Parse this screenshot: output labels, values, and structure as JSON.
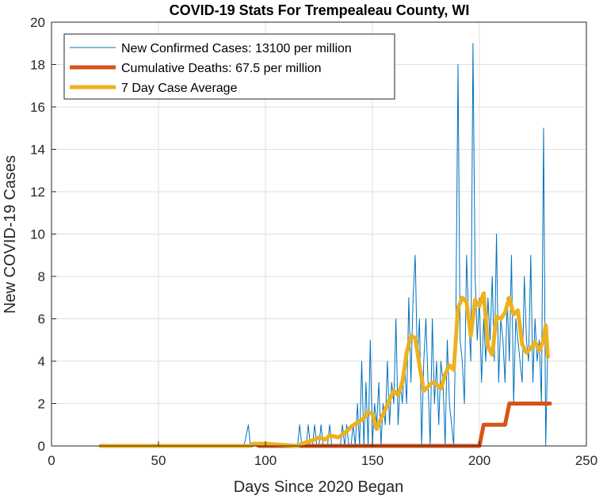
{
  "chart_data": {
    "type": "line",
    "title": "COVID-19 Stats For Trempealeau County, WI",
    "xlabel": "Days Since 2020 Began",
    "ylabel": "New COVID-19 Cases",
    "xlim": [
      0,
      250
    ],
    "ylim": [
      0,
      20
    ],
    "xticks": [
      "0",
      "50",
      "100",
      "150",
      "200",
      "250"
    ],
    "yticks": [
      "0",
      "2",
      "4",
      "6",
      "8",
      "10",
      "12",
      "14",
      "16",
      "18",
      "20"
    ],
    "grid": true,
    "legend_position": "top-left",
    "series": [
      {
        "name": "New Confirmed Cases: 13100 per million",
        "color": "#0072BD",
        "style": "thin",
        "x": [
          23,
          90,
          92,
          93,
          94,
          95,
          96,
          97,
          98,
          100,
          110,
          115,
          116,
          117,
          118,
          119,
          120,
          121,
          122,
          123,
          124,
          125,
          126,
          127,
          128,
          129,
          130,
          131,
          132,
          133,
          134,
          135,
          136,
          137,
          138,
          139,
          140,
          141,
          142,
          143,
          144,
          145,
          146,
          147,
          148,
          149,
          150,
          151,
          152,
          153,
          154,
          155,
          156,
          157,
          158,
          159,
          160,
          161,
          162,
          163,
          164,
          165,
          166,
          167,
          168,
          169,
          170,
          171,
          172,
          173,
          174,
          175,
          176,
          177,
          178,
          179,
          180,
          181,
          182,
          183,
          184,
          185,
          186,
          187,
          188,
          189,
          190,
          191,
          192,
          193,
          194,
          195,
          196,
          197,
          198,
          199,
          200,
          201,
          202,
          203,
          204,
          205,
          206,
          207,
          208,
          209,
          210,
          211,
          212,
          213,
          214,
          215,
          216,
          217,
          218,
          219,
          220,
          221,
          222,
          223,
          224,
          225,
          226,
          227,
          228,
          229,
          230,
          231,
          232
        ],
        "y": [
          0,
          0,
          1,
          0,
          0,
          0,
          0,
          0,
          0,
          0,
          0,
          0,
          1,
          0,
          0,
          0,
          1,
          0,
          0,
          1,
          0,
          0,
          1,
          0,
          0,
          0,
          1,
          0,
          0,
          0,
          0,
          0,
          1,
          0,
          1,
          0,
          0,
          1,
          0,
          2,
          0,
          4,
          0,
          3,
          0,
          5,
          0,
          2,
          1,
          3,
          0,
          2,
          1,
          4,
          1,
          3,
          2,
          6,
          1,
          3,
          2,
          4,
          2,
          7,
          3,
          7,
          9,
          4,
          6,
          0,
          4,
          6,
          3,
          0,
          6,
          2,
          4,
          1,
          4,
          3,
          0,
          5,
          2,
          1,
          0,
          6,
          18,
          5,
          4,
          2,
          9,
          6,
          4,
          19,
          8,
          5,
          7,
          3,
          6,
          4,
          7,
          5,
          8,
          4,
          10,
          3,
          6,
          5,
          3,
          7,
          4,
          9,
          2,
          6,
          5,
          4,
          3,
          8,
          5,
          4,
          9,
          3,
          6,
          4,
          5,
          2,
          15,
          0,
          5
        ],
        "values": [
          0,
          0,
          1,
          0,
          0,
          0,
          0,
          0,
          0,
          0,
          0,
          0,
          1,
          0,
          0,
          0,
          1,
          0,
          0,
          1,
          0,
          0,
          1,
          0,
          0,
          0,
          1,
          0,
          0,
          0,
          0,
          0,
          1,
          0,
          1,
          0,
          0,
          1,
          0,
          2,
          0,
          4,
          0,
          3,
          0,
          5,
          0,
          2,
          1,
          3,
          0,
          2,
          1,
          4,
          1,
          3,
          2,
          6,
          1,
          3,
          2,
          4,
          2,
          7,
          3,
          7,
          9,
          4,
          6,
          0,
          4,
          6,
          3,
          0,
          6,
          2,
          4,
          1,
          4,
          3,
          0,
          5,
          2,
          1,
          0,
          6,
          18,
          5,
          4,
          2,
          9,
          6,
          4,
          19,
          8,
          5,
          7,
          3,
          6,
          4,
          7,
          5,
          8,
          4,
          10,
          3,
          6,
          5,
          3,
          7,
          4,
          9,
          2,
          6,
          5,
          4,
          3,
          8,
          5,
          4,
          9,
          3,
          6,
          4,
          5,
          2,
          15,
          0,
          5
        ]
      },
      {
        "name": "Cumulative Deaths: 67.5 per million",
        "color": "#D95319",
        "style": "thick",
        "x": [
          23,
          93,
          95,
          97,
          98,
          115,
          117,
          200,
          202,
          212,
          214,
          233
        ],
        "y": [
          0,
          0,
          0.1,
          0,
          0,
          0,
          0,
          0,
          1,
          1,
          2,
          2
        ],
        "values": [
          0,
          0,
          0.1,
          0,
          0,
          0,
          0,
          0,
          1,
          1,
          2,
          2
        ]
      },
      {
        "name": "7 Day Case Average",
        "color": "#EDB120",
        "style": "thick",
        "x": [
          23,
          93,
          94,
          100,
          115,
          117,
          120,
          123,
          125,
          128,
          130,
          134,
          137,
          140,
          143,
          146,
          148,
          150,
          152,
          154,
          156,
          158,
          160,
          162,
          164,
          166,
          168,
          170,
          172,
          174,
          176,
          178,
          180,
          182,
          184,
          186,
          188,
          190,
          192,
          194,
          196,
          198,
          200,
          202,
          204,
          206,
          208,
          210,
          212,
          214,
          216,
          218,
          220,
          222,
          224,
          226,
          228,
          230,
          231,
          232
        ],
        "y": [
          0,
          0,
          0.1,
          0.1,
          0,
          0.1,
          0.2,
          0.3,
          0.4,
          0.3,
          0.5,
          0.4,
          0.6,
          0.9,
          1.1,
          1.3,
          1.6,
          1.5,
          0.8,
          1.3,
          1.7,
          2.2,
          2.6,
          2.4,
          3.0,
          4.4,
          5.2,
          5.1,
          3.8,
          2.6,
          2.8,
          3.0,
          2.9,
          2.7,
          3.4,
          3.8,
          3.6,
          6.5,
          7.0,
          6.8,
          5.2,
          6.9,
          6.6,
          7.2,
          4.7,
          4.3,
          6.1,
          6.0,
          6.3,
          7.0,
          6.2,
          6.4,
          4.8,
          4.4,
          4.6,
          4.9,
          4.5,
          5.0,
          5.7,
          4.2
        ],
        "values": [
          0,
          0,
          0.1,
          0.1,
          0,
          0.1,
          0.2,
          0.3,
          0.4,
          0.3,
          0.5,
          0.4,
          0.6,
          0.9,
          1.1,
          1.3,
          1.6,
          1.5,
          0.8,
          1.3,
          1.7,
          2.2,
          2.6,
          2.4,
          3.0,
          4.4,
          5.2,
          5.1,
          3.8,
          2.6,
          2.8,
          3.0,
          2.9,
          2.7,
          3.4,
          3.8,
          3.6,
          6.5,
          7.0,
          6.8,
          5.2,
          6.9,
          6.6,
          7.2,
          4.7,
          4.3,
          6.1,
          6.0,
          6.3,
          7.0,
          6.2,
          6.4,
          4.8,
          4.4,
          4.6,
          4.9,
          4.5,
          5.0,
          5.7,
          4.2
        ]
      }
    ]
  }
}
